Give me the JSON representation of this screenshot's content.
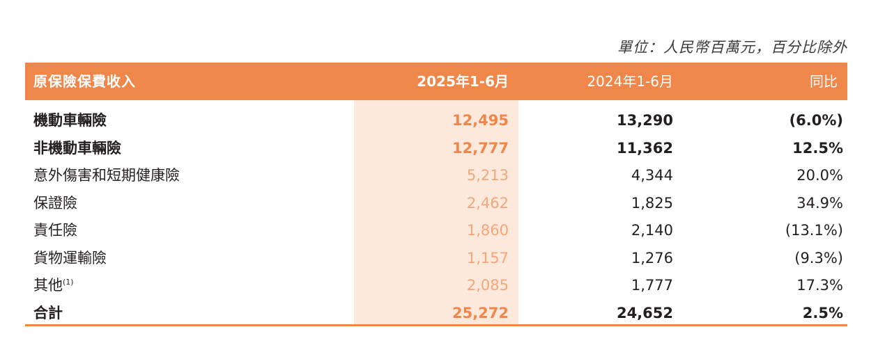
{
  "unit_note": "單位：人民幣百萬元，百分比除外",
  "header": {
    "category": "原保險保費收入",
    "col1": "2025年1-6月",
    "col2": "2024年1-6月",
    "col3": "同比"
  },
  "rows": [
    {
      "category": "機動車輛險",
      "v1": "12,495",
      "v2": "13,290",
      "v3": "(6.0%)"
    },
    {
      "category": "非機動車輛險",
      "v1": "12,777",
      "v2": "11,362",
      "v3": "12.5%"
    },
    {
      "category": "意外傷害和短期健康險",
      "v1": "5,213",
      "v2": "4,344",
      "v3": "20.0%"
    },
    {
      "category": "保證險",
      "v1": "2,462",
      "v2": "1,825",
      "v3": "34.9%"
    },
    {
      "category": "責任險",
      "v1": "1,860",
      "v2": "2,140",
      "v3": "(13.1%)"
    },
    {
      "category": "貨物運輸險",
      "v1": "1,157",
      "v2": "1,276",
      "v3": "(9.3%)"
    },
    {
      "category": "其他",
      "note": "(1)",
      "v1": "2,085",
      "v2": "1,777",
      "v3": "17.3%"
    },
    {
      "category": "合計",
      "v1": "25,272",
      "v2": "24,652",
      "v3": "2.5%"
    }
  ],
  "colors": {
    "accent": "#ef874b",
    "highlight": "#fde8dc"
  }
}
